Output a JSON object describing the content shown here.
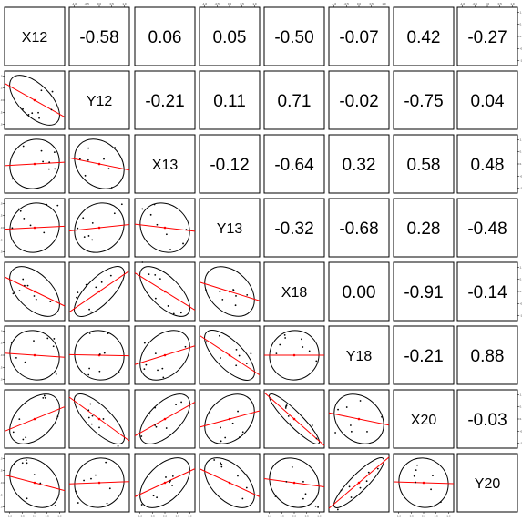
{
  "chart_data": {
    "type": "scatter",
    "subtype": "pairs-plot-matrix",
    "variables": [
      "X12",
      "Y12",
      "X13",
      "Y13",
      "X18",
      "Y18",
      "X20",
      "Y20"
    ],
    "lower_panels": "scatter with red regression line and black ellipse",
    "upper_panels": "correlation coefficient",
    "diagonal": "variable name",
    "axis_ticks": [
      "-1.0",
      "-0.5",
      "0.0",
      "0.5",
      "1.0"
    ],
    "axis_range": [
      -1.2,
      1.2
    ],
    "correlations": [
      [
        "",
        "-0.58",
        "0.06",
        "0.05",
        "-0.50",
        "-0.07",
        "0.42",
        "-0.27"
      ],
      [
        "",
        "",
        "-0.21",
        "0.11",
        "0.71",
        "-0.02",
        "-0.75",
        "0.04"
      ],
      [
        "",
        "",
        "",
        "-0.12",
        "-0.64",
        "0.32",
        "0.58",
        "0.48"
      ],
      [
        "",
        "",
        "",
        "",
        "-0.32",
        "-0.68",
        "0.28",
        "-0.48"
      ],
      [
        "",
        "",
        "",
        "",
        "",
        "0.00",
        "-0.91",
        "-0.14"
      ],
      [
        "",
        "",
        "",
        "",
        "",
        "",
        "-0.21",
        "0.88"
      ],
      [
        "",
        "",
        "",
        "",
        "",
        "",
        "",
        "-0.03"
      ],
      [
        "",
        "",
        "",
        "",
        "",
        "",
        "",
        ""
      ]
    ],
    "colors": {
      "regression_line": "#ff0000",
      "ellipse": "#000000",
      "points": "#000000",
      "frame": "#000000"
    }
  }
}
